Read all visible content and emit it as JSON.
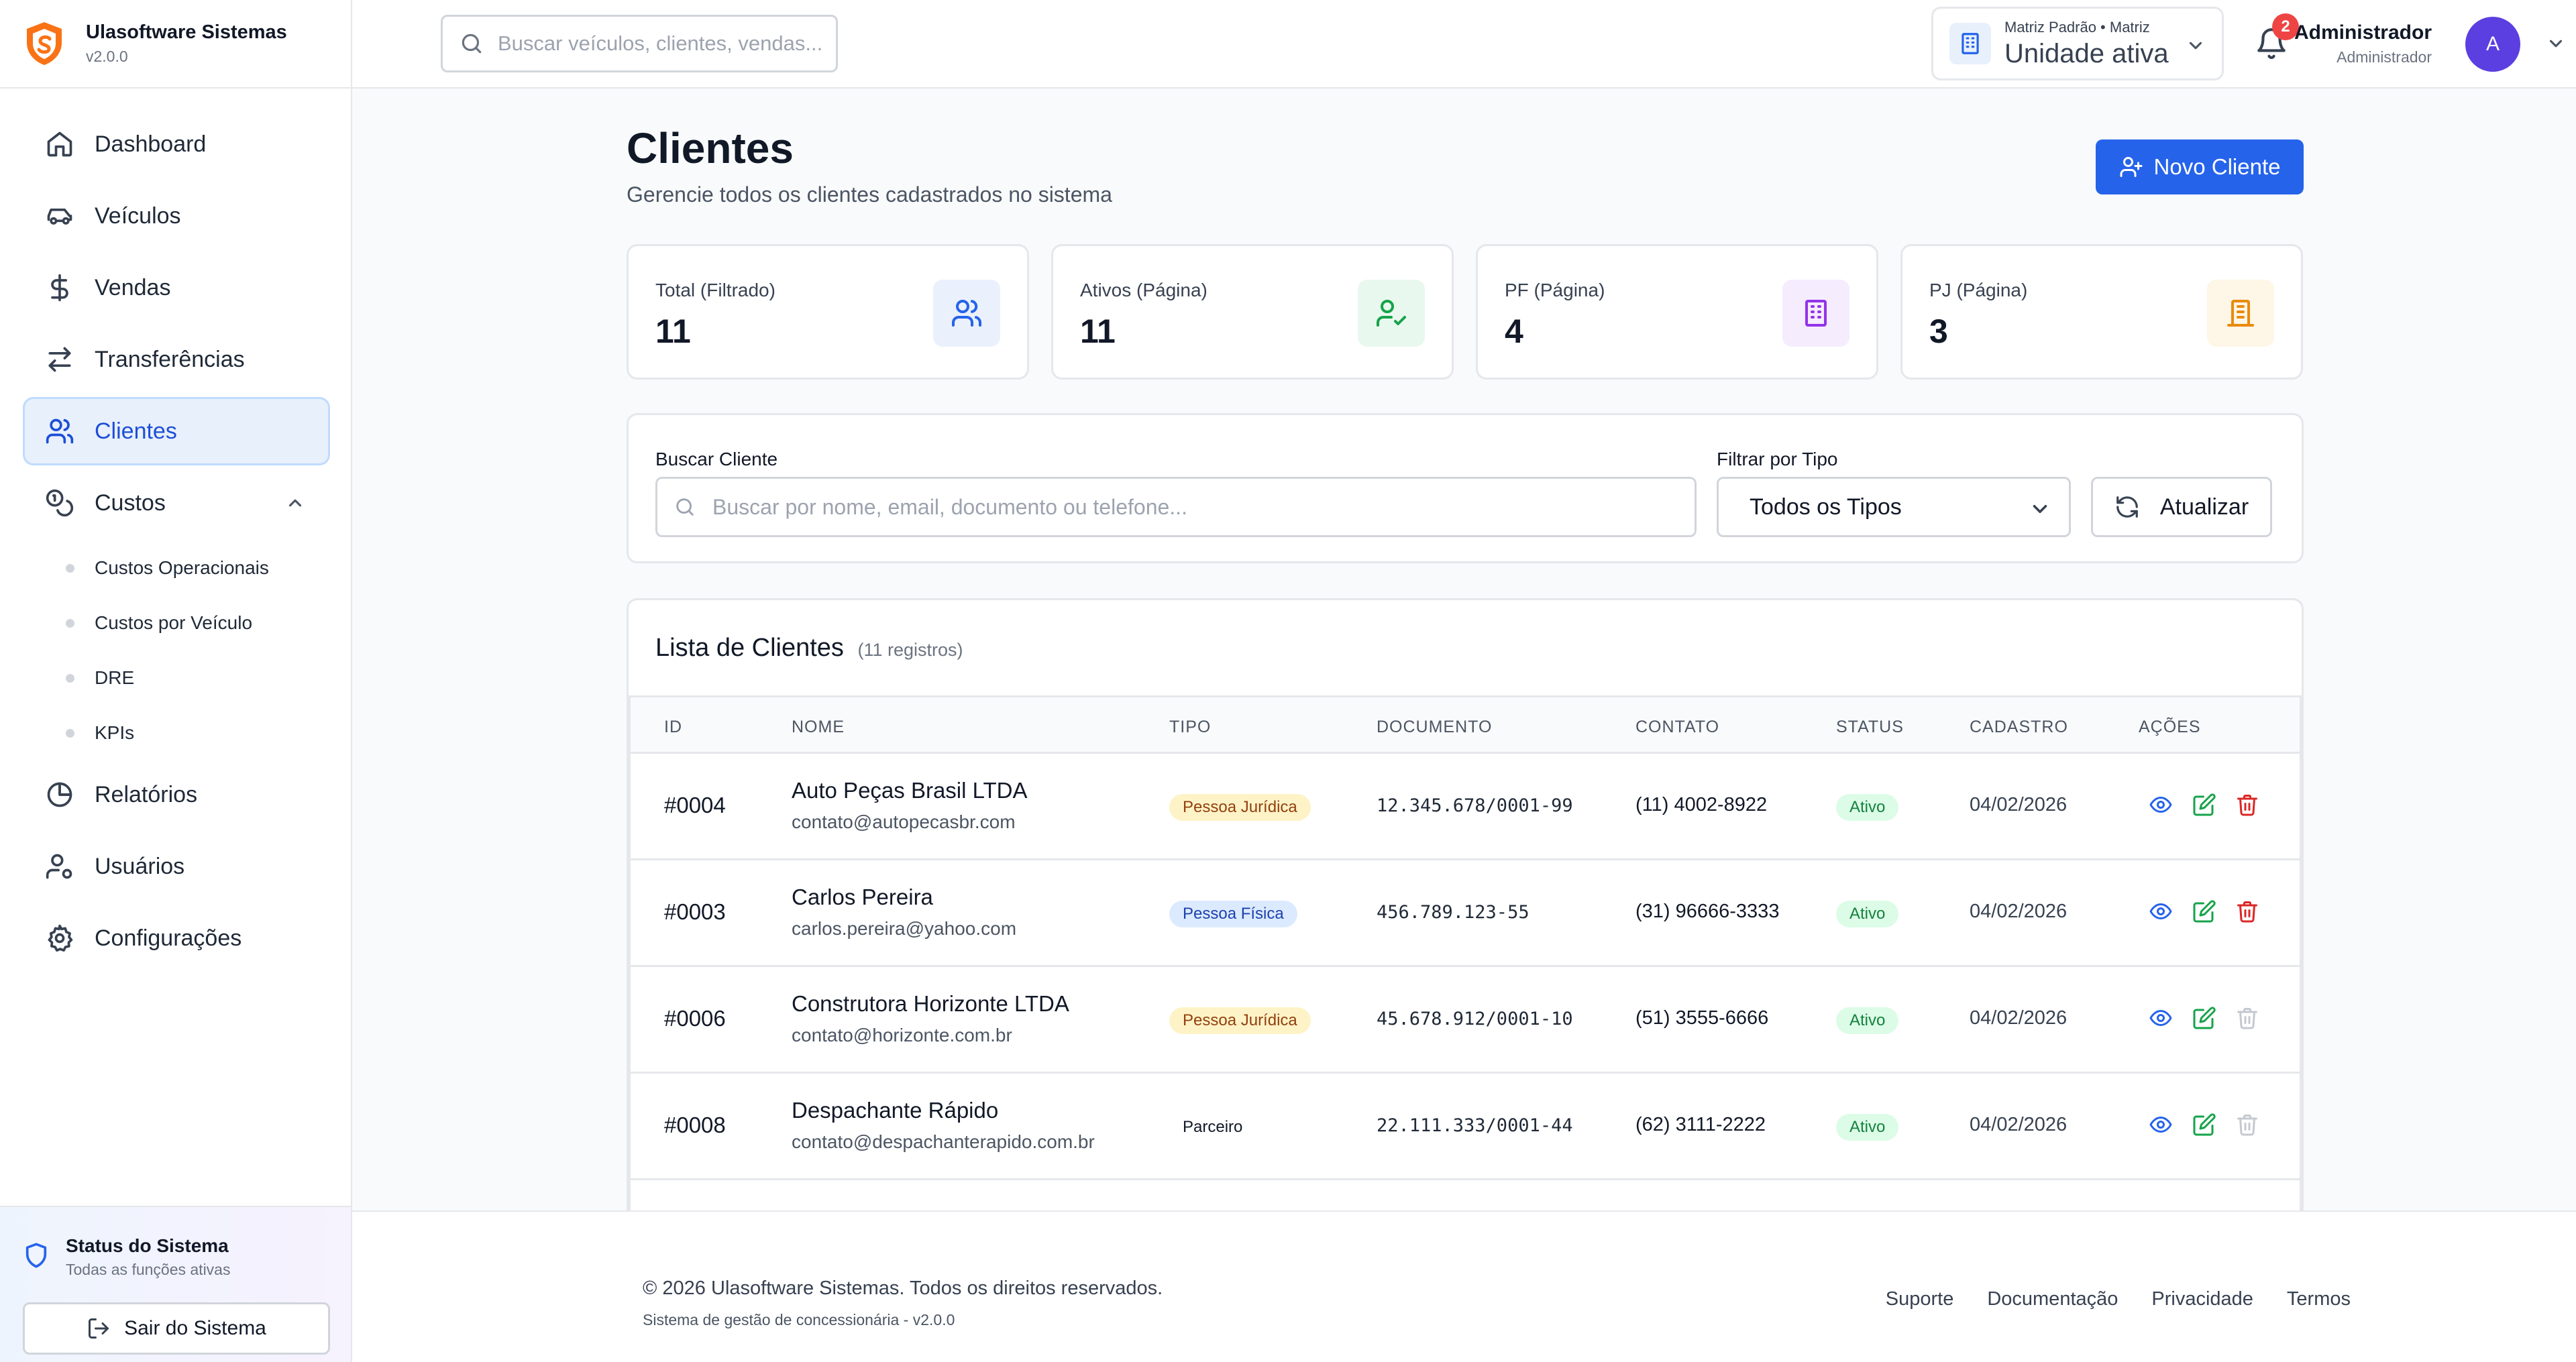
{
  "app": {
    "name": "Ulasoftware Sistemas",
    "version": "v2.0.0"
  },
  "header": {
    "search_placeholder": "Buscar veículos, clientes, vendas...",
    "unit": {
      "top": "Matriz Padrão • Matriz",
      "main": "Unidade ativa"
    },
    "notifications_count": "2",
    "user": {
      "name": "Administrador",
      "role": "Administrador",
      "initial": "A"
    }
  },
  "sidebar": {
    "items": [
      {
        "label": "Dashboard",
        "icon": "home-icon"
      },
      {
        "label": "Veículos",
        "icon": "car-icon"
      },
      {
        "label": "Vendas",
        "icon": "dollar-icon"
      },
      {
        "label": "Transferências",
        "icon": "arrows-icon"
      },
      {
        "label": "Clientes",
        "icon": "users-icon",
        "active": true
      },
      {
        "label": "Custos",
        "icon": "coins-icon",
        "expanded": true
      },
      {
        "label": "Relatórios",
        "icon": "pie-chart-icon"
      },
      {
        "label": "Usuários",
        "icon": "user-cog-icon"
      },
      {
        "label": "Configurações",
        "icon": "gear-icon"
      }
    ],
    "custos_sub": [
      "Custos Operacionais",
      "Custos por Veículo",
      "DRE",
      "KPIs"
    ],
    "status": {
      "title": "Status do Sistema",
      "subtitle": "Todas as funções ativas"
    },
    "logout_label": "Sair do Sistema"
  },
  "page": {
    "title": "Clientes",
    "subtitle": "Gerencie todos os clientes cadastrados no sistema",
    "new_button": "Novo Cliente"
  },
  "stats": [
    {
      "label": "Total (Filtrado)",
      "value": "11"
    },
    {
      "label": "Ativos (Página)",
      "value": "11"
    },
    {
      "label": "PF (Página)",
      "value": "4"
    },
    {
      "label": "PJ (Página)",
      "value": "3"
    }
  ],
  "filters": {
    "search_label": "Buscar Cliente",
    "search_placeholder": "Buscar por nome, email, documento ou telefone...",
    "type_label": "Filtrar por Tipo",
    "type_selected": "Todos os Tipos",
    "refresh_label": "Atualizar"
  },
  "list": {
    "title": "Lista de Clientes",
    "count": "(11 registros)",
    "columns": [
      "ID",
      "NOME",
      "TIPO",
      "DOCUMENTO",
      "CONTATO",
      "STATUS",
      "CADASTRO",
      "AÇÕES"
    ],
    "rows": [
      {
        "id": "#0004",
        "name": "Auto Peças Brasil LTDA",
        "email": "contato@autopecasbr.com",
        "tipo": "Pessoa Jurídica",
        "documento": "12.345.678/0001-99",
        "contato": "(11) 4002-8922",
        "status": "Ativo",
        "cadastro": "04/02/2026"
      },
      {
        "id": "#0003",
        "name": "Carlos Pereira",
        "email": "carlos.pereira@yahoo.com",
        "tipo": "Pessoa Física",
        "documento": "456.789.123-55",
        "contato": "(31) 96666-3333",
        "status": "Ativo",
        "cadastro": "04/02/2026"
      },
      {
        "id": "#0006",
        "name": "Construtora Horizonte LTDA",
        "email": "contato@horizonte.com.br",
        "tipo": "Pessoa Jurídica",
        "documento": "45.678.912/0001-10",
        "contato": "(51) 3555-6666",
        "status": "Ativo",
        "cadastro": "04/02/2026"
      },
      {
        "id": "#0008",
        "name": "Despachante Rápido",
        "email": "contato@despachanterapido.com.br",
        "tipo": "Parceiro",
        "documento": "22.111.333/0001-44",
        "contato": "(62) 3111-2222",
        "status": "Ativo",
        "cadastro": "04/02/2026"
      }
    ]
  },
  "footer": {
    "copyright": "© 2026 Ulasoftware Sistemas. Todos os direitos reservados.",
    "subtitle": "Sistema de gestão de concessionária - v2.0.0",
    "links": [
      "Suporte",
      "Documentação",
      "Privacidade",
      "Termos"
    ]
  },
  "colors": {
    "accent": "#2563eb",
    "active_bg": "#e8f0fc",
    "success": "#16a34a",
    "danger": "#dc2626",
    "pj_badge_bg": "#fef3c7",
    "pf_badge_bg": "#dbeafe"
  }
}
